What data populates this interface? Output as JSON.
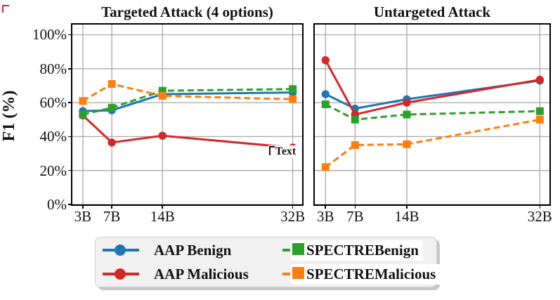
{
  "chart_data": {
    "type": "line",
    "ylabel": "F1 (%)",
    "x_values": [
      3,
      7,
      14,
      32
    ],
    "x_tick_labels": [
      "3B",
      "7B",
      "14B",
      "32B"
    ],
    "xlim": [
      1.55,
      33.3
    ],
    "ylim": [
      0,
      106
    ],
    "yticks": [
      0,
      20,
      40,
      60,
      80,
      100
    ],
    "ytick_labels": [
      "0%",
      "20%",
      "40%",
      "60%",
      "80%",
      "100%"
    ],
    "grid": true,
    "grid_color": "#a9a9a9",
    "legend_position": "bottom-center",
    "panels": [
      {
        "title": "Targeted Attack (4 options)",
        "series": [
          {
            "name": "AAP Benign",
            "values": [
              55,
              55.5,
              65,
              66
            ]
          },
          {
            "name": "AAP Malicious",
            "values": [
              52.5,
              36.5,
              40.5,
              33.5
            ]
          },
          {
            "name": "SPECTREBenign",
            "values": [
              53,
              57,
              67,
              68
            ]
          },
          {
            "name": "SPECTREMalicious",
            "values": [
              61,
              71,
              64,
              62
            ]
          }
        ],
        "annotation": {
          "label": "Text",
          "x": 32,
          "y": 33.5
        }
      },
      {
        "title": "Untargeted Attack",
        "series": [
          {
            "name": "AAP Benign",
            "values": [
              65,
              56.5,
              62,
              73
            ]
          },
          {
            "name": "AAP Malicious",
            "values": [
              85,
              53,
              60,
              73.5
            ]
          },
          {
            "name": "SPECTREBenign",
            "values": [
              59,
              50,
              53,
              55
            ]
          },
          {
            "name": "SPECTREMalicious",
            "values": [
              22,
              35,
              35.5,
              50
            ]
          }
        ]
      }
    ],
    "styles": [
      {
        "name": "AAP Benign",
        "color": "#1f77b4",
        "line": "solid",
        "marker": "circle"
      },
      {
        "name": "AAP Malicious",
        "color": "#d62728",
        "line": "solid",
        "marker": "circle"
      },
      {
        "name": "SPECTREBenign",
        "color": "#2ca02c",
        "line": "dashed",
        "marker": "square"
      },
      {
        "name": "SPECTREMalicious",
        "color": "#ff7f0e",
        "line": "dashed",
        "marker": "square"
      }
    ]
  },
  "legend": {
    "entries": [
      {
        "label": "AAP Benign",
        "series": "AAP Benign"
      },
      {
        "label": "SPECTREBenign",
        "series": "SPECTREBenign"
      },
      {
        "label": "AAP Malicious",
        "series": "AAP Malicious"
      },
      {
        "label": "SPECTREMalicious",
        "series": "SPECTREMalicious"
      }
    ]
  }
}
